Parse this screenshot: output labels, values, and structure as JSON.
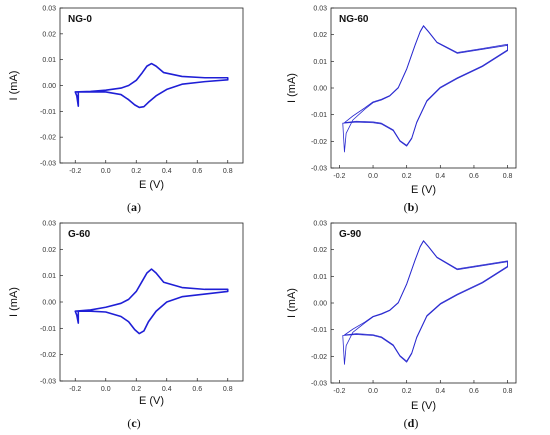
{
  "chart_data": [
    {
      "type": "line",
      "title": "NG-0",
      "caption_letter": "a",
      "xlabel": "E (V)",
      "ylabel": "I (mA)",
      "xlim": [
        -0.3,
        0.9
      ],
      "ylim": [
        -0.03,
        0.03
      ],
      "xticks": [
        -0.2,
        0.0,
        0.2,
        0.4,
        0.6,
        0.8
      ],
      "xtick_labels": [
        "-0.2",
        "0.0",
        "0.2",
        "0.4",
        "0.6",
        "0.8"
      ],
      "yticks": [
        -0.03,
        -0.02,
        -0.01,
        0.0,
        0.01,
        0.02,
        0.03
      ],
      "ytick_labels": [
        "-0.03",
        "-0.02",
        "-0.01",
        "0.00",
        "0.01",
        "0.02",
        "0.03"
      ],
      "color": "#1f1fd6",
      "series": [
        {
          "x": [
            -0.18,
            -0.19,
            -0.2,
            -0.1,
            0.0,
            0.1,
            0.15,
            0.2,
            0.24,
            0.27,
            0.3,
            0.33,
            0.38,
            0.5,
            0.65,
            0.8,
            0.8,
            0.65,
            0.5,
            0.4,
            0.33,
            0.28,
            0.25,
            0.22,
            0.19,
            0.15,
            0.1,
            0.0,
            -0.1,
            -0.18
          ],
          "y": [
            -0.008,
            -0.004,
            -0.0025,
            -0.0023,
            -0.0018,
            -0.001,
            0.0,
            0.002,
            0.005,
            0.0075,
            0.0085,
            0.0075,
            0.005,
            0.0035,
            0.003,
            0.003,
            0.0022,
            0.0015,
            0.0005,
            -0.0015,
            -0.004,
            -0.0065,
            -0.0082,
            -0.0085,
            -0.0075,
            -0.0055,
            -0.0035,
            -0.0025,
            -0.0025,
            -0.0025
          ]
        }
      ]
    },
    {
      "type": "line",
      "title": "NG-60",
      "caption_letter": "b",
      "xlabel": "E (V)",
      "ylabel": "I (mA)",
      "xlim": [
        -0.25,
        0.85
      ],
      "ylim": [
        -0.03,
        0.03
      ],
      "xticks": [
        -0.2,
        0.0,
        0.2,
        0.4,
        0.6,
        0.8
      ],
      "xtick_labels": [
        "-0.2",
        "0.0",
        "0.2",
        "0.4",
        "0.6",
        "0.8"
      ],
      "yticks": [
        -0.03,
        -0.02,
        -0.01,
        0.0,
        0.01,
        0.02,
        0.03
      ],
      "ytick_labels": [
        "-0.03",
        "-0.02",
        "-0.01",
        "0.00",
        "0.01",
        "0.02",
        "0.03"
      ],
      "color": "#2a2ad0",
      "series": [
        {
          "x": [
            -0.17,
            -0.16,
            -0.12,
            -0.05,
            0.0,
            0.05,
            0.1,
            0.15,
            0.2,
            0.25,
            0.28,
            0.3,
            0.33,
            0.38,
            0.5,
            0.65,
            0.8,
            0.8,
            0.65,
            0.5,
            0.4,
            0.32,
            0.26,
            0.23,
            0.2,
            0.16,
            0.12,
            0.05,
            0.0,
            -0.1,
            -0.18
          ],
          "y": [
            -0.024,
            -0.017,
            -0.012,
            -0.008,
            -0.0055,
            -0.0045,
            -0.003,
            0.0,
            0.007,
            0.016,
            0.021,
            0.0232,
            0.021,
            0.017,
            0.013,
            0.0145,
            0.016,
            0.014,
            0.008,
            0.0035,
            0.0,
            -0.005,
            -0.013,
            -0.019,
            -0.0218,
            -0.02,
            -0.016,
            -0.0135,
            -0.013,
            -0.0128,
            -0.0132
          ]
        },
        {
          "x": [
            -0.17,
            -0.12,
            -0.05,
            0.0,
            0.05,
            0.1,
            0.15,
            0.2,
            0.25,
            0.28,
            0.3,
            0.33,
            0.38,
            0.5,
            0.65,
            0.8,
            0.8,
            0.65,
            0.5,
            0.4,
            0.32,
            0.26,
            0.23,
            0.2,
            0.16,
            0.12,
            0.05,
            0.0,
            -0.1,
            -0.17
          ],
          "y": [
            -0.013,
            -0.0105,
            -0.0075,
            -0.0052,
            -0.0042,
            -0.0028,
            0.0002,
            0.0072,
            0.0162,
            0.0212,
            0.0234,
            0.0212,
            0.0172,
            0.0133,
            0.0148,
            0.0164,
            0.0143,
            0.0083,
            0.0038,
            0.0003,
            -0.0047,
            -0.0127,
            -0.0187,
            -0.0215,
            -0.0197,
            -0.0157,
            -0.0132,
            -0.0127,
            -0.0125,
            -0.013
          ]
        }
      ]
    },
    {
      "type": "line",
      "title": "G-60",
      "caption_letter": "c",
      "xlabel": "E (V)",
      "ylabel": "I (mA)",
      "xlim": [
        -0.3,
        0.9
      ],
      "ylim": [
        -0.03,
        0.03
      ],
      "xticks": [
        -0.2,
        0.0,
        0.2,
        0.4,
        0.6,
        0.8
      ],
      "xtick_labels": [
        "-0.2",
        "0.0",
        "0.2",
        "0.4",
        "0.6",
        "0.8"
      ],
      "yticks": [
        -0.03,
        -0.02,
        -0.01,
        0.0,
        0.01,
        0.02,
        0.03
      ],
      "ytick_labels": [
        "-0.03",
        "-0.02",
        "-0.01",
        "0.00",
        "0.01",
        "0.02",
        "0.03"
      ],
      "color": "#1f1fd6",
      "series": [
        {
          "x": [
            -0.18,
            -0.19,
            -0.2,
            -0.1,
            0.0,
            0.1,
            0.15,
            0.2,
            0.24,
            0.27,
            0.3,
            0.33,
            0.38,
            0.5,
            0.65,
            0.8,
            0.8,
            0.65,
            0.5,
            0.4,
            0.33,
            0.28,
            0.25,
            0.22,
            0.19,
            0.15,
            0.1,
            0.0,
            -0.1,
            -0.18
          ],
          "y": [
            -0.008,
            -0.005,
            -0.0035,
            -0.003,
            -0.002,
            -0.0005,
            0.001,
            0.004,
            0.008,
            0.011,
            0.0125,
            0.011,
            0.0075,
            0.0055,
            0.0048,
            0.0048,
            0.004,
            0.003,
            0.002,
            0.0,
            -0.0035,
            -0.0075,
            -0.011,
            -0.012,
            -0.0105,
            -0.0075,
            -0.0055,
            -0.0038,
            -0.0035,
            -0.0035
          ]
        }
      ]
    },
    {
      "type": "line",
      "title": "G-90",
      "caption_letter": "d",
      "xlabel": "E (V)",
      "ylabel": "I (mA)",
      "xlim": [
        -0.25,
        0.85
      ],
      "ylim": [
        -0.03,
        0.03
      ],
      "xticks": [
        -0.2,
        0.0,
        0.2,
        0.4,
        0.6,
        0.8
      ],
      "xtick_labels": [
        "-0.2",
        "0.0",
        "0.2",
        "0.4",
        "0.6",
        "0.8"
      ],
      "yticks": [
        -0.03,
        -0.02,
        -0.01,
        0.0,
        0.01,
        0.02,
        0.03
      ],
      "ytick_labels": [
        "-0.03",
        "-0.02",
        "-0.01",
        "0.00",
        "0.01",
        "0.02",
        "0.03"
      ],
      "color": "#2a2ad0",
      "series": [
        {
          "x": [
            -0.17,
            -0.16,
            -0.12,
            -0.05,
            0.0,
            0.05,
            0.1,
            0.15,
            0.2,
            0.25,
            0.28,
            0.3,
            0.33,
            0.38,
            0.5,
            0.65,
            0.8,
            0.8,
            0.65,
            0.5,
            0.4,
            0.32,
            0.26,
            0.23,
            0.2,
            0.16,
            0.12,
            0.05,
            0.0,
            -0.1,
            -0.18
          ],
          "y": [
            -0.023,
            -0.016,
            -0.011,
            -0.0075,
            -0.0052,
            -0.0042,
            -0.0028,
            0.0,
            0.007,
            0.016,
            0.021,
            0.0232,
            0.021,
            0.017,
            0.0125,
            0.014,
            0.0155,
            0.0135,
            0.0075,
            0.003,
            -0.0005,
            -0.005,
            -0.013,
            -0.019,
            -0.0222,
            -0.02,
            -0.016,
            -0.013,
            -0.0122,
            -0.0118,
            -0.0122
          ]
        },
        {
          "x": [
            -0.17,
            -0.12,
            -0.05,
            0.0,
            0.05,
            0.1,
            0.15,
            0.2,
            0.25,
            0.28,
            0.3,
            0.33,
            0.38,
            0.5,
            0.65,
            0.8,
            0.8,
            0.65,
            0.5,
            0.4,
            0.32,
            0.26,
            0.23,
            0.2,
            0.16,
            0.12,
            0.05,
            0.0,
            -0.1,
            -0.17
          ],
          "y": [
            -0.012,
            -0.0098,
            -0.0072,
            -0.005,
            -0.004,
            -0.0026,
            0.0002,
            0.0072,
            0.0162,
            0.0212,
            0.0234,
            0.0212,
            0.0172,
            0.0128,
            0.0143,
            0.0158,
            0.0138,
            0.0078,
            0.0033,
            -0.0002,
            -0.0047,
            -0.0127,
            -0.0187,
            -0.0218,
            -0.0197,
            -0.0157,
            -0.0127,
            -0.0119,
            -0.0115,
            -0.012
          ]
        }
      ]
    }
  ]
}
